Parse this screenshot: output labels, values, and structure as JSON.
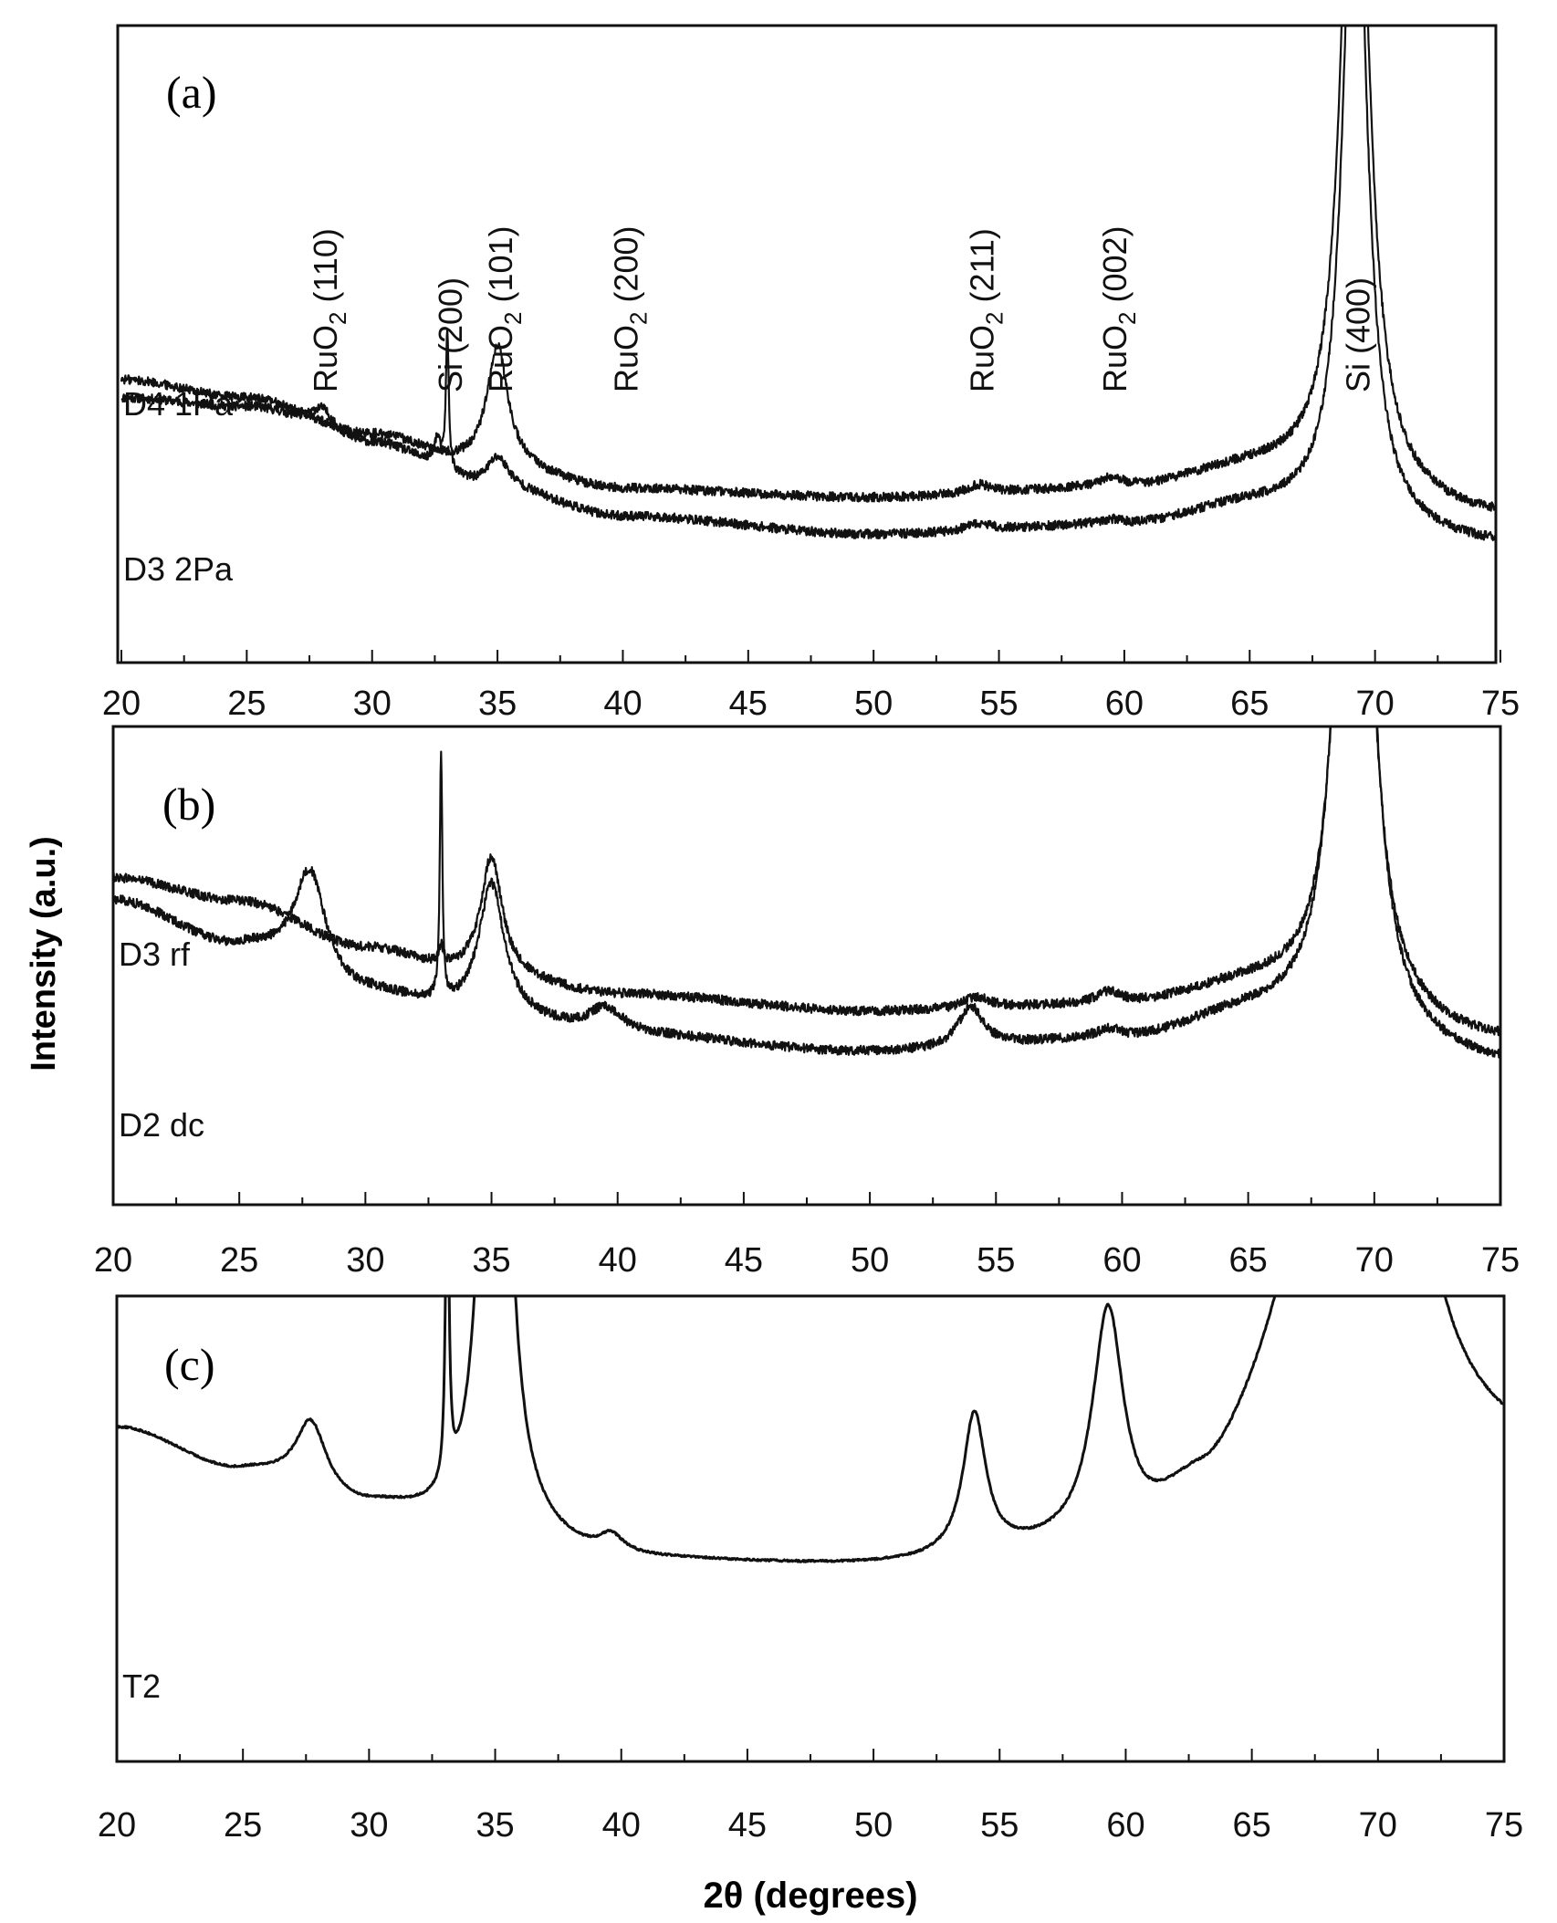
{
  "figure": {
    "ylabel": "Intensity (a.u.)",
    "xlabel": "2θ (degrees)",
    "colors": {
      "line": "#111111",
      "frame": "#111111",
      "background": "#ffffff"
    }
  },
  "chart_data": [
    {
      "type": "line",
      "panel_label": "(a)",
      "xlim": [
        20,
        75
      ],
      "xticks": [
        "20",
        "25",
        "30",
        "35",
        "40",
        "45",
        "50",
        "55",
        "60",
        "65",
        "70",
        "75"
      ],
      "xlabel": "",
      "ylabel": "",
      "peak_labels": [
        {
          "x": 28.0,
          "text": "RuO2 (110)"
        },
        {
          "x": 33.0,
          "text": "Si (200)"
        },
        {
          "x": 35.0,
          "text": "RuO2 (101)"
        },
        {
          "x": 40.0,
          "text": "RuO2 (200)"
        },
        {
          "x": 54.2,
          "text": "RuO2 (211)"
        },
        {
          "x": 59.5,
          "text": "RuO2 (002)"
        },
        {
          "x": 69.2,
          "text": "Si (400)"
        }
      ],
      "series": [
        {
          "name": "D4 1Pa",
          "baseline": [
            [
              20,
              0.58
            ],
            [
              25,
              0.56
            ],
            [
              30,
              0.48
            ],
            [
              35,
              0.38
            ],
            [
              40,
              0.32
            ],
            [
              50,
              0.28
            ],
            [
              60,
              0.3
            ],
            [
              65,
              0.34
            ],
            [
              75,
              0.26
            ]
          ],
          "peaks": [
            {
              "x": 28.0,
              "h": 0.05,
              "w": 0.55
            },
            {
              "x": 32.6,
              "h": 0.06,
              "w": 0.15
            },
            {
              "x": 33.0,
              "h": 0.3,
              "w": 0.07
            },
            {
              "x": 35.0,
              "h": 0.07,
              "w": 0.55
            },
            {
              "x": 54.2,
              "h": 0.015,
              "w": 0.6
            },
            {
              "x": 59.5,
              "h": 0.01,
              "w": 0.6
            },
            {
              "x": 69.2,
              "h": 1.6,
              "w": 0.55
            }
          ]
        },
        {
          "name": "D3 2Pa",
          "baseline": [
            [
              20,
              0.62
            ],
            [
              25,
              0.58
            ],
            [
              30,
              0.5
            ],
            [
              34,
              0.44
            ],
            [
              40,
              0.38
            ],
            [
              50,
              0.36
            ],
            [
              60,
              0.38
            ],
            [
              65,
              0.42
            ],
            [
              75,
              0.32
            ]
          ],
          "peaks": [
            {
              "x": 35.0,
              "h": 0.26,
              "w": 0.5
            },
            {
              "x": 54.2,
              "h": 0.02,
              "w": 0.6
            },
            {
              "x": 59.5,
              "h": 0.02,
              "w": 0.6
            },
            {
              "x": 69.2,
              "h": 1.8,
              "w": 0.6
            }
          ]
        }
      ]
    },
    {
      "type": "line",
      "panel_label": "(b)",
      "xlim": [
        20,
        75
      ],
      "xticks": [
        "20",
        "25",
        "30",
        "35",
        "40",
        "45",
        "50",
        "55",
        "60",
        "65",
        "70",
        "75"
      ],
      "xlabel": "",
      "ylabel": "",
      "series": [
        {
          "name": "D3 rf",
          "baseline": [
            [
              20,
              0.56
            ],
            [
              25,
              0.52
            ],
            [
              30,
              0.44
            ],
            [
              34,
              0.4
            ],
            [
              40,
              0.36
            ],
            [
              50,
              0.33
            ],
            [
              60,
              0.34
            ],
            [
              65,
              0.37
            ],
            [
              75,
              0.28
            ]
          ],
          "peaks": [
            {
              "x": 33.0,
              "h": 0.03,
              "w": 0.1
            },
            {
              "x": 35.0,
              "h": 0.2,
              "w": 0.5
            },
            {
              "x": 54.2,
              "h": 0.02,
              "w": 0.6
            },
            {
              "x": 59.5,
              "h": 0.02,
              "w": 0.6
            },
            {
              "x": 69.2,
              "h": 1.6,
              "w": 0.6
            }
          ]
        },
        {
          "name": "D2 dc",
          "baseline": [
            [
              20,
              0.52
            ],
            [
              25,
              0.44
            ],
            [
              30,
              0.36
            ],
            [
              34,
              0.33
            ],
            [
              40,
              0.29
            ],
            [
              50,
              0.26
            ],
            [
              60,
              0.28
            ],
            [
              65,
              0.32
            ],
            [
              75,
              0.24
            ]
          ],
          "peaks": [
            {
              "x": 27.8,
              "h": 0.18,
              "w": 0.75
            },
            {
              "x": 33.0,
              "h": 0.42,
              "w": 0.06
            },
            {
              "x": 35.0,
              "h": 0.22,
              "w": 0.6
            },
            {
              "x": 39.5,
              "h": 0.045,
              "w": 0.8
            },
            {
              "x": 54.0,
              "h": 0.07,
              "w": 0.6
            },
            {
              "x": 59.5,
              "h": 0.015,
              "w": 0.6
            },
            {
              "x": 69.2,
              "h": 1.8,
              "w": 0.6
            }
          ]
        }
      ]
    },
    {
      "type": "line",
      "panel_label": "(c)",
      "xlim": [
        20,
        75
      ],
      "xticks": [
        "20",
        "25",
        "30",
        "35",
        "40",
        "45",
        "50",
        "55",
        "60",
        "65",
        "70",
        "75"
      ],
      "xlabel": "2θ (degrees)",
      "ylabel": "",
      "series": [
        {
          "name": "T2",
          "baseline": [
            [
              20,
              0.52
            ],
            [
              25,
              0.45
            ],
            [
              30,
              0.39
            ],
            [
              34,
              0.36
            ],
            [
              40,
              0.31
            ],
            [
              50,
              0.3
            ],
            [
              60,
              0.32
            ],
            [
              63,
              0.38
            ],
            [
              66,
              0.46
            ],
            [
              75,
              0.46
            ]
          ],
          "peaks": [
            {
              "x": 27.7,
              "h": 0.11,
              "w": 0.75
            },
            {
              "x": 33.1,
              "h": 0.52,
              "w": 0.08
            },
            {
              "x": 35.0,
              "h": 1.58,
              "w": 0.45
            },
            {
              "x": 39.6,
              "h": 0.03,
              "w": 0.6
            },
            {
              "x": 54.0,
              "h": 0.22,
              "w": 0.55
            },
            {
              "x": 59.3,
              "h": 0.36,
              "w": 0.75
            },
            {
              "x": 69.3,
              "h": 4.0,
              "w": 0.9
            }
          ]
        }
      ]
    }
  ]
}
